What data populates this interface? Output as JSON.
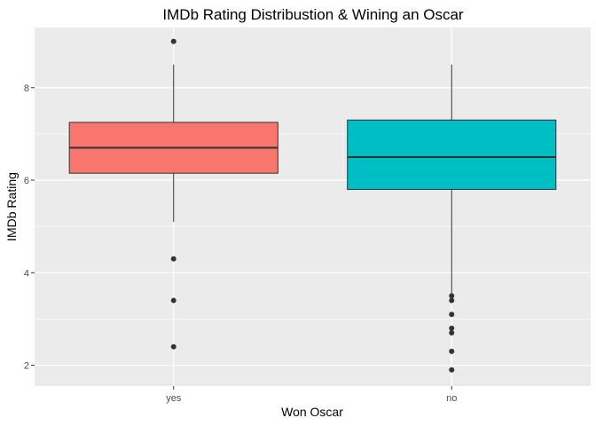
{
  "chart_data": {
    "type": "boxplot",
    "title": "IMDb Rating Distribustion & Wining an Oscar",
    "xlabel": "Won Oscar",
    "ylabel": "IMDb Rating",
    "ylim": [
      1.55,
      9.3
    ],
    "yticks": [
      2,
      4,
      6,
      8
    ],
    "grid": true,
    "legend": "none",
    "categories": [
      "yes",
      "no"
    ],
    "boxes": [
      {
        "category": "yes",
        "color": "#F8766D",
        "whisker_low": 5.1,
        "q1": 6.15,
        "median": 6.7,
        "q3": 7.25,
        "whisker_high": 8.5,
        "outliers": [
          9.0,
          4.3,
          3.4,
          2.4
        ]
      },
      {
        "category": "no",
        "color": "#00BFC4",
        "whisker_low": 3.55,
        "q1": 5.8,
        "median": 6.5,
        "q3": 7.3,
        "whisker_high": 8.5,
        "outliers": [
          3.5,
          3.4,
          3.1,
          2.8,
          2.7,
          2.3,
          1.9
        ]
      }
    ],
    "colors": {
      "panel_background": "#EBEBEB",
      "grid_major": "#FFFFFF",
      "box_outline": "#333333",
      "outlier": "#333333"
    }
  }
}
